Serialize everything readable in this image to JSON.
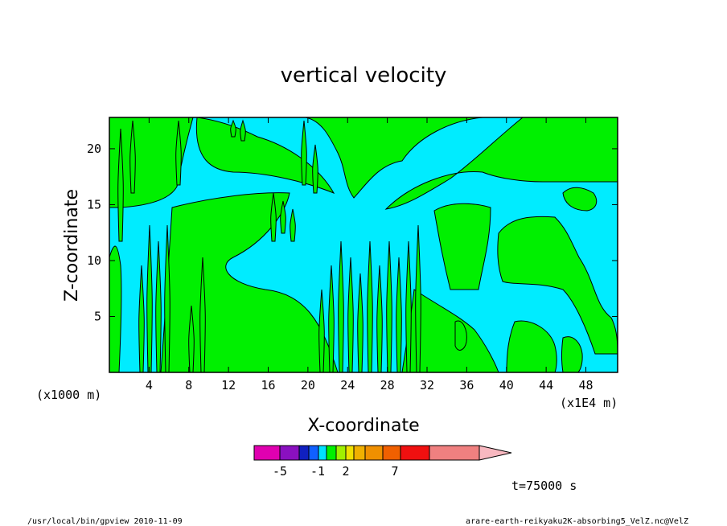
{
  "chart_data": {
    "type": "heatmap",
    "title": "vertical velocity",
    "xlabel": "X-coordinate",
    "ylabel": "Z-coordinate",
    "x_scale_label": "(x1E4 m)",
    "y_scale_label": "(x1000 m)",
    "xlim": [
      0,
      51.2
    ],
    "ylim": [
      0,
      22.8
    ],
    "xticks": [
      4,
      8,
      12,
      16,
      20,
      24,
      28,
      32,
      36,
      40,
      44,
      48
    ],
    "yticks": [
      5,
      10,
      15,
      20
    ],
    "colorbar": {
      "colors": [
        "#e000b0",
        "#8a10c0",
        "#1020c0",
        "#1060ff",
        "#00e0ff",
        "#00f000",
        "#a0f000",
        "#f0e000",
        "#f0b000",
        "#f09000",
        "#f06000",
        "#f01010",
        "#f08080",
        "#f8b8c0"
      ],
      "tick_labels": [
        "-5",
        "-1",
        "2",
        "7"
      ],
      "extend": "max"
    },
    "dominant_fields": {
      "negative_small": "#00ecff",
      "positive_small": "#00f000"
    },
    "time_label": "t=75000 s"
  },
  "footer": {
    "left": "/usr/local/bin/gpview  2010-11-09",
    "right": "arare-earth-reikyaku2K-absorbing5_VelZ.nc@VelZ"
  }
}
